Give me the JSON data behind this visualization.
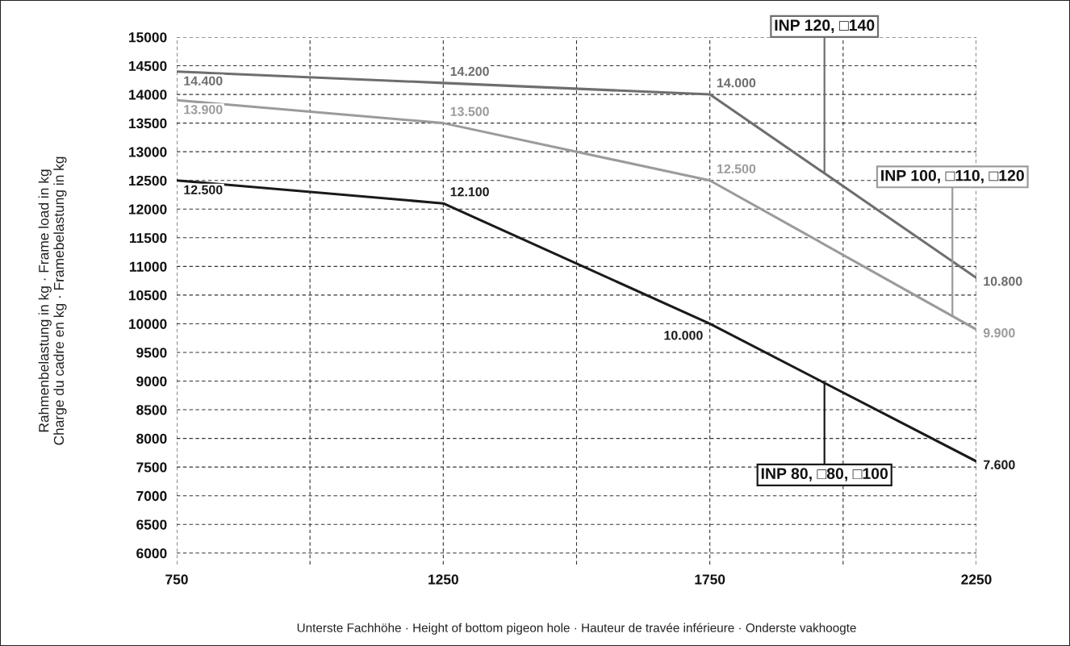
{
  "chart_data": {
    "type": "line",
    "x": [
      750,
      1250,
      1750,
      2250
    ],
    "series": [
      {
        "name": "INP 120, □140",
        "color": "#6e6e6e",
        "values": [
          14400,
          14200,
          14000,
          10800
        ],
        "value_labels": [
          "14.400",
          "14.200",
          "14.000",
          "10.800"
        ]
      },
      {
        "name": "INP 100, □110, □120",
        "color": "#9b9b9b",
        "values": [
          13900,
          13500,
          12500,
          9900
        ],
        "value_labels": [
          "13.900",
          "13.500",
          "12.500",
          "9.900"
        ]
      },
      {
        "name": "INP 80, □80, □100",
        "color": "#1a1a1a",
        "values": [
          12500,
          12100,
          10000,
          7600
        ],
        "value_labels": [
          "12.500",
          "12.100",
          "10.000",
          "7.600"
        ]
      }
    ],
    "xlabel": "Unterste Fachhöhe · Height of bottom pigeon hole · Hauteur de travée inférieure · Onderste vakhoogte",
    "ylabel": "Rahmenbelastung in kg · Frame load in kg\nCharge du cadre en kg · Framebelastung in kg",
    "xlim": [
      750,
      2250
    ],
    "xticks": [
      750,
      {
        "value": 1000,
        "label": null
      },
      1250,
      {
        "value": 1500,
        "label": null
      },
      1750,
      {
        "value": 2000,
        "label": null
      },
      2250
    ],
    "ylim": [
      5800,
      15000
    ],
    "yticks": [
      6000,
      6500,
      7000,
      7500,
      8000,
      8500,
      9000,
      9500,
      10000,
      10500,
      11000,
      11500,
      12000,
      12500,
      13000,
      13500,
      14000,
      14500,
      15000
    ],
    "grid": true,
    "marker": "none",
    "line_style": "solid"
  }
}
